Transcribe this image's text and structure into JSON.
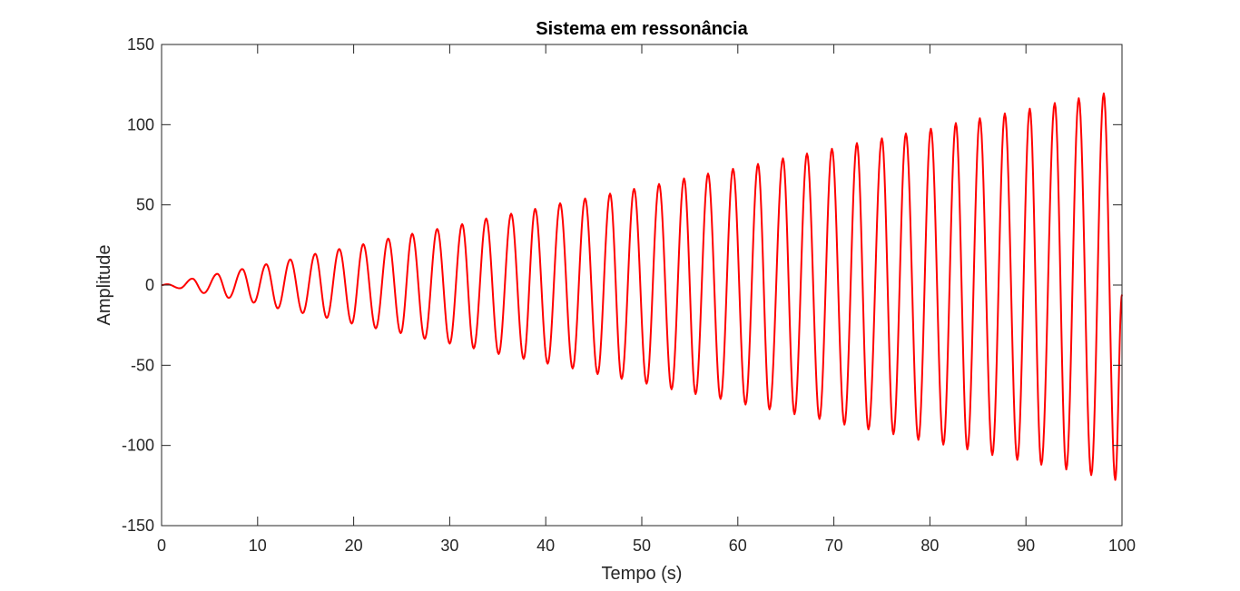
{
  "chart_data": {
    "type": "line",
    "title": "Sistema em ressonância",
    "xlabel": "Tempo (s)",
    "ylabel": "Amplitude",
    "xlim": [
      0,
      100
    ],
    "ylim": [
      -150,
      150
    ],
    "xticks": [
      0,
      10,
      20,
      30,
      40,
      50,
      60,
      70,
      80,
      90,
      100
    ],
    "yticks": [
      -150,
      -100,
      -50,
      0,
      50,
      100,
      150
    ],
    "xtick_labels": [
      "0",
      "10",
      "20",
      "30",
      "40",
      "50",
      "60",
      "70",
      "80",
      "90",
      "100"
    ],
    "ytick_labels": [
      "-150",
      "-100",
      "-50",
      "0",
      "50",
      "100",
      "150"
    ],
    "grid": false,
    "legend": "none",
    "series": [
      {
        "color": "#ff0000",
        "peaks_t": [
          0.6,
          3.2,
          5.8,
          8.4,
          10.9,
          13.4,
          16.0,
          18.5,
          21.0,
          23.6,
          26.1,
          28.7,
          31.3,
          33.8,
          36.4,
          38.9,
          41.5,
          44.1,
          46.7,
          49.2,
          51.8,
          54.4,
          56.9,
          59.5,
          62.1,
          64.7,
          67.2,
          69.8,
          72.4,
          75.0,
          77.5,
          80.1,
          82.7,
          85.2,
          87.8,
          90.4,
          93.0,
          95.5,
          98.1
        ],
        "peaks_y": [
          0.5,
          4,
          7,
          10,
          13,
          16,
          19.5,
          22.5,
          25.5,
          29,
          32,
          35,
          38,
          41.5,
          44.5,
          47.5,
          51,
          54,
          57,
          60,
          63,
          66.5,
          69.5,
          72.5,
          75.5,
          79,
          82,
          85,
          88.5,
          91.5,
          94.5,
          97.5,
          101,
          104,
          107,
          110,
          113.5,
          116.5,
          119.5
        ],
        "troughs_t": [
          1.9,
          4.4,
          7.0,
          9.6,
          12.1,
          14.7,
          17.2,
          19.8,
          22.3,
          24.9,
          27.4,
          30.0,
          32.5,
          35.1,
          37.7,
          40.2,
          42.8,
          45.4,
          47.9,
          50.5,
          53.1,
          55.6,
          58.2,
          60.8,
          63.3,
          65.9,
          68.5,
          71.1,
          73.6,
          76.2,
          78.8,
          81.4,
          83.9,
          86.5,
          89.1,
          91.6,
          94.2,
          96.8,
          99.3
        ],
        "troughs_y": [
          -2,
          -5,
          -8,
          -11,
          -14.5,
          -17.5,
          -20.5,
          -24,
          -27,
          -30,
          -33.5,
          -36.5,
          -39.5,
          -43,
          -46,
          -49,
          -52,
          -55.5,
          -58.5,
          -61.5,
          -65,
          -68,
          -71,
          -74.5,
          -77.5,
          -80.5,
          -83.5,
          -87,
          -90,
          -93,
          -96.5,
          -99.5,
          -102.5,
          -106,
          -109,
          -112,
          -115,
          -118.5,
          -121.5
        ],
        "end": [
          100,
          -6
        ]
      }
    ]
  }
}
